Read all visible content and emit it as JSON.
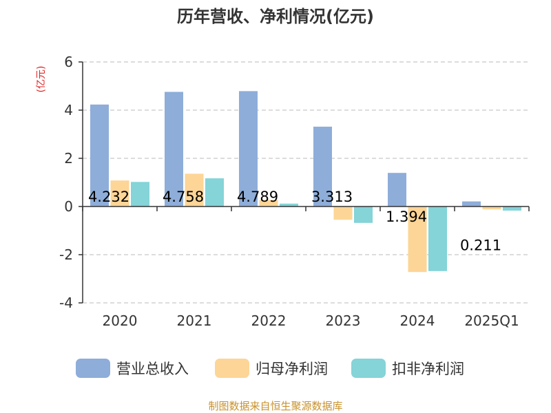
{
  "title": "历年营收、净利情况(亿元)",
  "source": "制图数据来自恒生聚源数据库",
  "chart_data": {
    "type": "bar",
    "title": "历年营收、净利情况(亿元)",
    "unit_label": "(亿元)",
    "categories": [
      "2020",
      "2021",
      "2022",
      "2023",
      "2024",
      "2025Q1"
    ],
    "ylim": [
      -4,
      6
    ],
    "yticks": [
      6,
      4,
      2,
      0,
      -2,
      -4
    ],
    "grid": "dashed horizontal",
    "legend_position": "bottom",
    "series": [
      {
        "name": "营业总收入",
        "color": "#8eadd9",
        "values": [
          4.232,
          4.758,
          4.789,
          3.313,
          1.394,
          0.211
        ],
        "labels": [
          "4.232",
          "4.758",
          "4.789",
          "3.313",
          "1.394",
          "0.211"
        ]
      },
      {
        "name": "归母净利润",
        "color": "#fdd596",
        "values": [
          1.08,
          1.36,
          0.27,
          -0.55,
          -2.72,
          -0.12
        ]
      },
      {
        "name": "扣非净利润",
        "color": "#84d4d8",
        "values": [
          1.02,
          1.17,
          0.12,
          -0.68,
          -2.68,
          -0.17
        ]
      }
    ]
  }
}
